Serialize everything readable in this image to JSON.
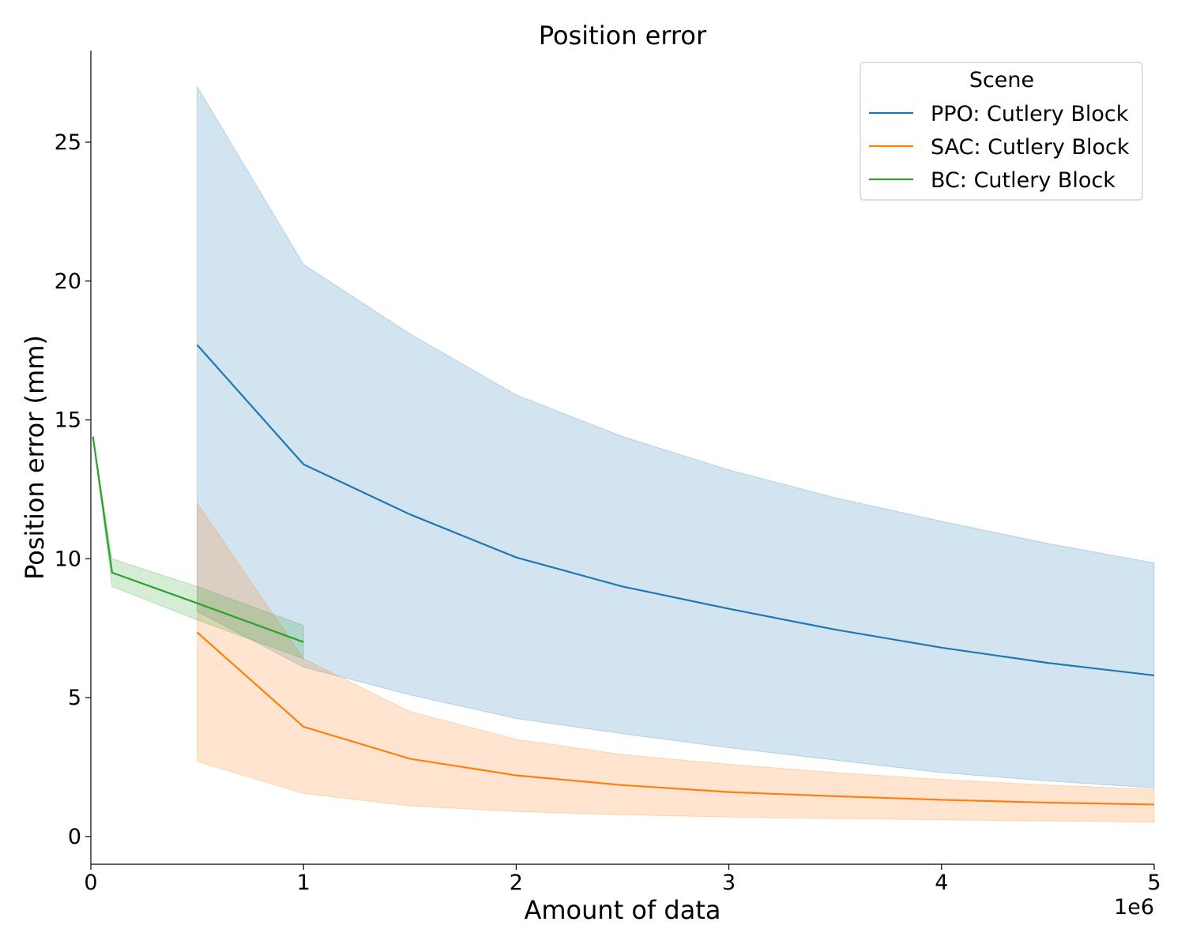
{
  "chart_data": {
    "type": "line",
    "title": "Position error",
    "xlabel": "Amount of data",
    "ylabel": "Position error (mm)",
    "x_offset_label": "1e6",
    "xlim": [
      0,
      5
    ],
    "ylim": [
      -1,
      28.3
    ],
    "x_ticks": [
      0,
      1,
      2,
      3,
      4,
      5
    ],
    "y_ticks": [
      0,
      5,
      10,
      15,
      20,
      25
    ],
    "grid": false,
    "legend": {
      "title": "Scene",
      "position": "top-right"
    },
    "series": [
      {
        "name": "PPO: Cutlery Block",
        "color": "#1f77b4",
        "x": [
          0.5,
          1.0,
          1.5,
          2.0,
          2.5,
          3.0,
          3.5,
          4.0,
          4.5,
          5.0
        ],
        "y": [
          17.7,
          13.4,
          11.6,
          10.05,
          9.0,
          8.2,
          7.45,
          6.8,
          6.25,
          5.8
        ],
        "lower": [
          8.1,
          6.1,
          5.1,
          4.25,
          3.7,
          3.2,
          2.75,
          2.3,
          2.0,
          1.75
        ],
        "upper": [
          27.0,
          20.6,
          18.1,
          15.9,
          14.4,
          13.2,
          12.2,
          11.35,
          10.55,
          9.85
        ]
      },
      {
        "name": "SAC: Cutlery Block",
        "color": "#ff7f0e",
        "x": [
          0.5,
          1.0,
          1.5,
          2.0,
          2.5,
          3.0,
          3.5,
          4.0,
          4.5,
          5.0
        ],
        "y": [
          7.35,
          3.95,
          2.8,
          2.2,
          1.85,
          1.6,
          1.45,
          1.32,
          1.22,
          1.15
        ],
        "lower": [
          2.7,
          1.55,
          1.1,
          0.9,
          0.78,
          0.7,
          0.65,
          0.6,
          0.56,
          0.52
        ],
        "upper": [
          12.0,
          6.4,
          4.5,
          3.5,
          2.95,
          2.6,
          2.3,
          2.05,
          1.85,
          1.7
        ]
      },
      {
        "name": "BC: Cutlery Block",
        "color": "#2ca02c",
        "x": [
          0.01,
          0.1,
          0.5,
          1.0
        ],
        "y": [
          14.4,
          9.5,
          8.4,
          7.0
        ],
        "lower": [
          14.4,
          9.0,
          7.8,
          6.4
        ],
        "upper": [
          14.4,
          10.0,
          9.0,
          7.6
        ]
      }
    ]
  }
}
